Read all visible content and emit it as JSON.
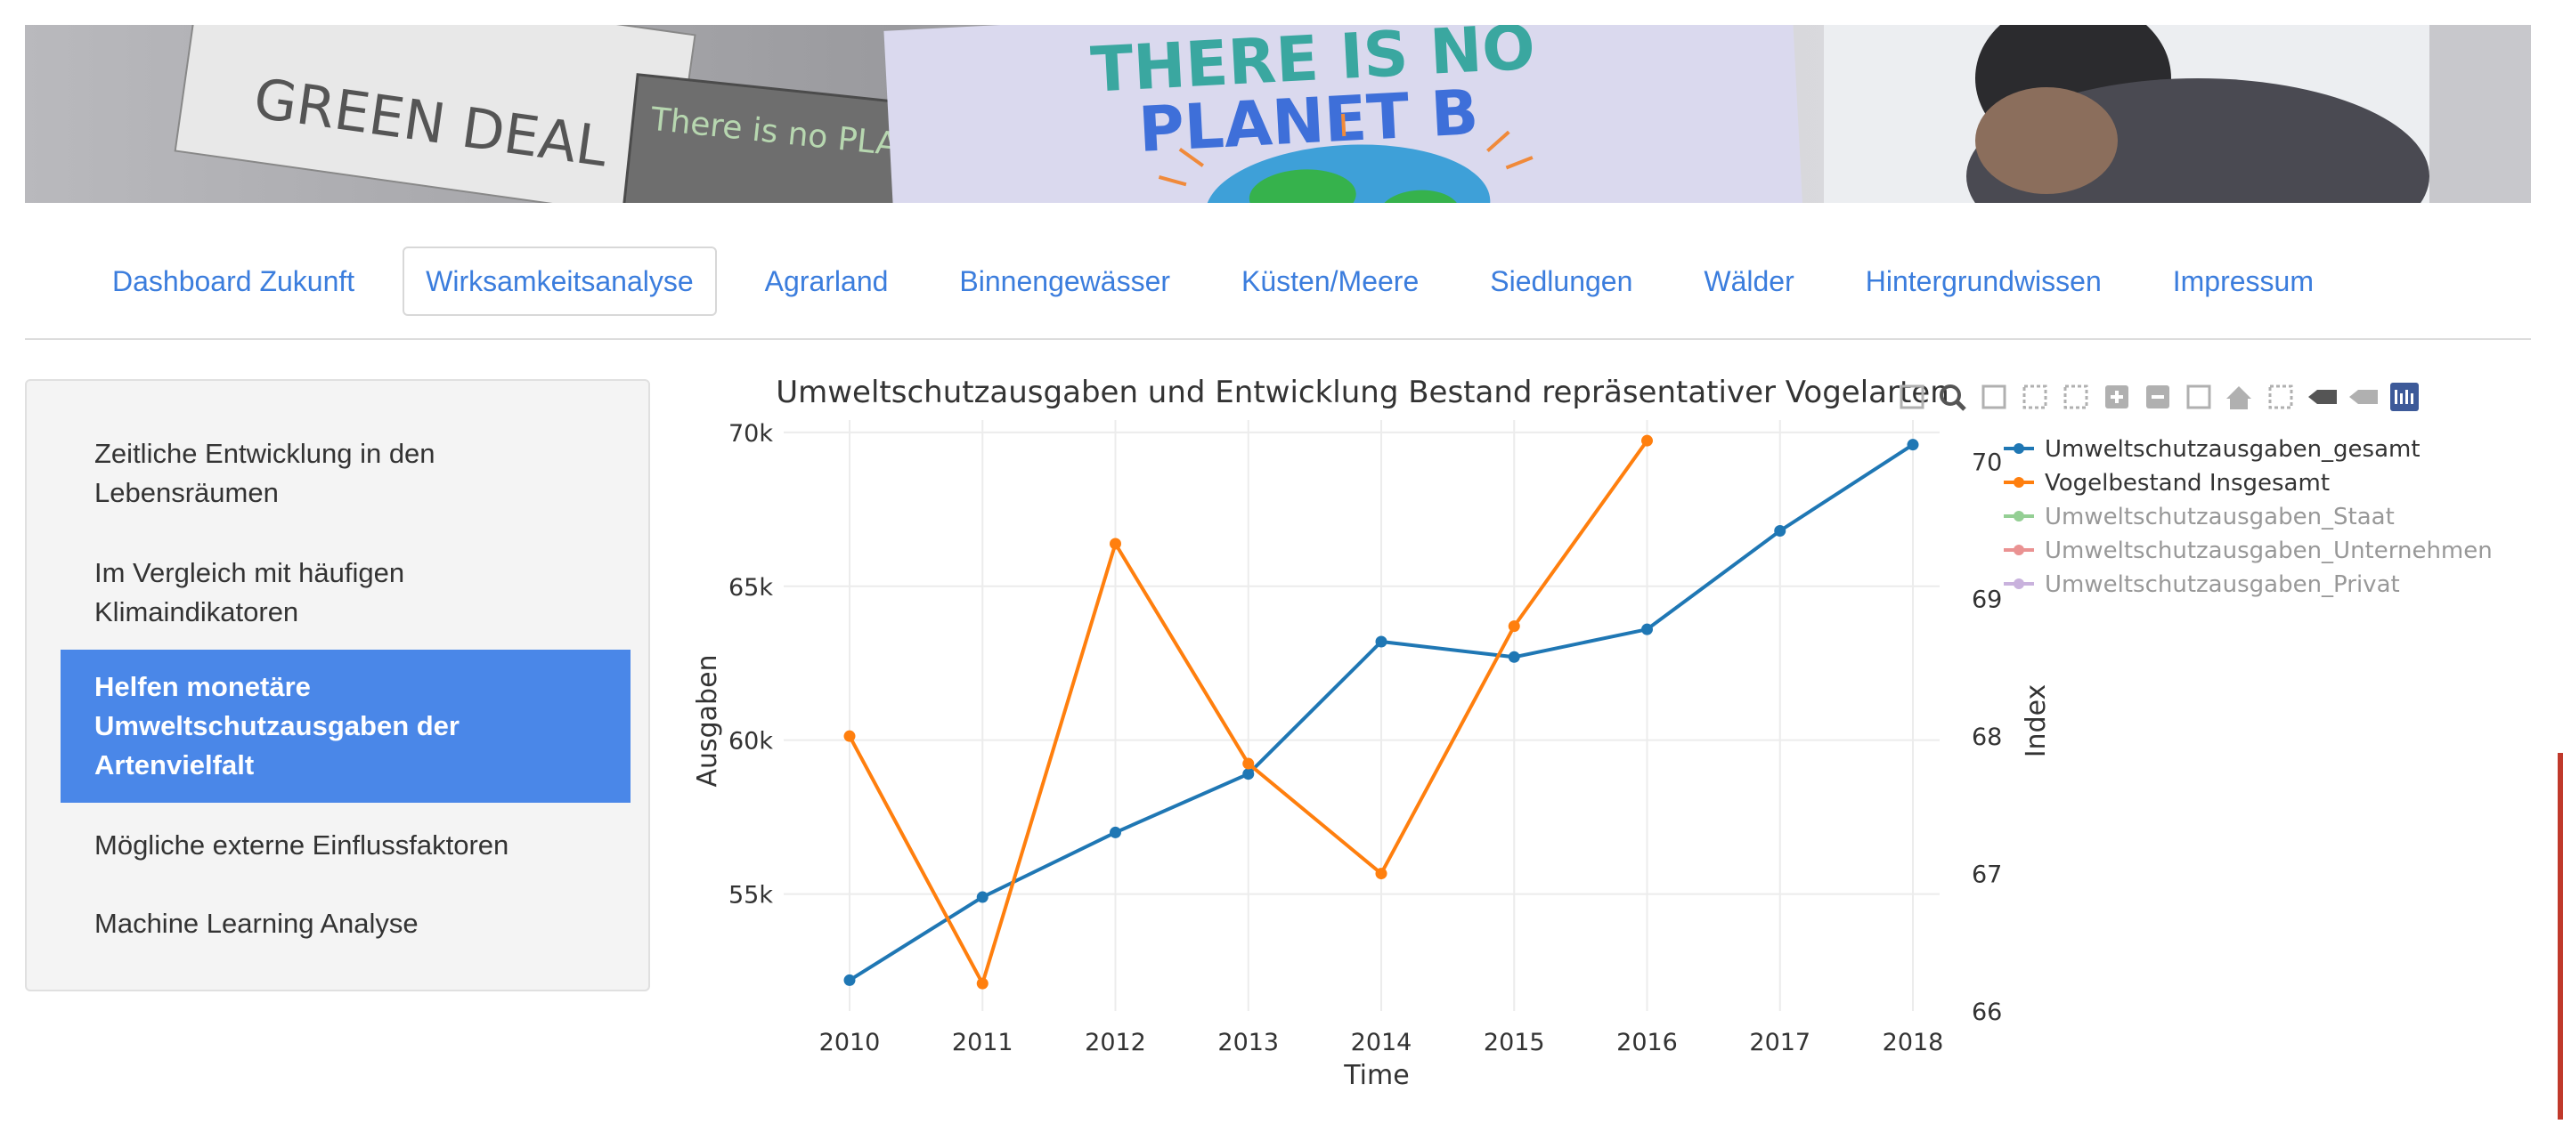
{
  "nav": {
    "tabs": [
      {
        "label": "Dashboard Zukunft",
        "active": false
      },
      {
        "label": "Wirksamkeitsanalyse",
        "active": true
      },
      {
        "label": "Agrarland",
        "active": false
      },
      {
        "label": "Binnengewässer",
        "active": false
      },
      {
        "label": "Küsten/Meere",
        "active": false
      },
      {
        "label": "Siedlungen",
        "active": false
      },
      {
        "label": "Wälder",
        "active": false
      },
      {
        "label": "Hintergrundwissen",
        "active": false
      },
      {
        "label": "Impressum",
        "active": false
      }
    ]
  },
  "banner": {
    "sign_text_line1": "THERE IS NO",
    "sign_text_line2": "PLANET B",
    "left_sign_text": "GREEN DEAL",
    "middle_sign_text": "There is no PLANET"
  },
  "sidebar": {
    "items": [
      {
        "label": "Zeitliche Entwicklung in den Lebensräumen",
        "active": false
      },
      {
        "label": "Im Vergleich mit häufigen Klimaindikatoren",
        "active": false
      },
      {
        "label": "Helfen monetäre Umweltschutzausgaben der Artenvielfalt",
        "active": true
      },
      {
        "label": "Mögliche externe Einflussfaktoren",
        "active": false
      },
      {
        "label": "Machine Learning Analyse",
        "active": false
      }
    ]
  },
  "toolbar": {
    "icons": [
      "camera-icon",
      "zoom-icon",
      "pan-icon",
      "box-select-icon",
      "lasso-select-icon",
      "zoom-in-icon",
      "zoom-out-icon",
      "autoscale-icon",
      "reset-axes-icon",
      "spike-lines-icon",
      "hover-closest-icon",
      "hover-compare-icon",
      "plotly-logo-icon"
    ]
  },
  "chart_data": {
    "type": "line",
    "title": "Umweltschutzausgaben und Entwicklung Bestand repräsentativer Vogelarten",
    "xlabel": "Time",
    "ylabel": "Ausgaben",
    "y2label": "Index",
    "x": [
      2010,
      2011,
      2012,
      2013,
      2014,
      2015,
      2016,
      2017,
      2018
    ],
    "ylim": [
      51200,
      70400
    ],
    "y_ticks": [
      55000,
      60000,
      65000,
      70000
    ],
    "y_tick_labels": [
      "55k",
      "60k",
      "65k",
      "70k"
    ],
    "y2lim": [
      66,
      70.3
    ],
    "y2_ticks": [
      66,
      67,
      68,
      69,
      70
    ],
    "y2_tick_labels": [
      "66",
      "67",
      "68",
      "69",
      "70"
    ],
    "grid": true,
    "legend_position": "right",
    "series": [
      {
        "name": "Umweltschutzausgaben_gesamt",
        "color": "#1f77b4",
        "axis": "y",
        "visible": true,
        "x": [
          2010,
          2011,
          2012,
          2013,
          2014,
          2015,
          2016,
          2017,
          2018
        ],
        "values": [
          52200,
          54900,
          57000,
          58900,
          63200,
          62700,
          63600,
          66800,
          69600
        ]
      },
      {
        "name": "Vogelbestand Insgesamt",
        "color": "#ff7f0e",
        "axis": "y2",
        "visible": true,
        "x": [
          2010,
          2011,
          2012,
          2013,
          2014,
          2015,
          2016
        ],
        "values": [
          68.0,
          66.2,
          69.4,
          67.8,
          67.0,
          68.8,
          70.15
        ]
      },
      {
        "name": "Umweltschutzausgaben_Staat",
        "color": "#2ca02c",
        "axis": "y",
        "visible": false,
        "x": [],
        "values": []
      },
      {
        "name": "Umweltschutzausgaben_Unternehmen",
        "color": "#d62728",
        "axis": "y",
        "visible": false,
        "x": [],
        "values": []
      },
      {
        "name": "Umweltschutzausgaben_Privat",
        "color": "#9467bd",
        "axis": "y",
        "visible": false,
        "x": [],
        "values": []
      }
    ]
  }
}
